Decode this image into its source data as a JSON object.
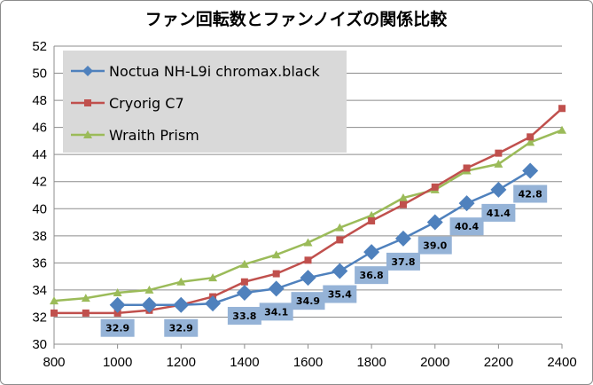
{
  "chart_data": {
    "type": "line",
    "title": "ファン回転数とファンノイズの関係比較",
    "xlabel": "",
    "ylabel": "",
    "xlim": [
      800,
      2400
    ],
    "ylim": [
      30,
      52
    ],
    "xticks": [
      800,
      1000,
      1200,
      1400,
      1600,
      1800,
      2000,
      2200,
      2400
    ],
    "yticks": [
      30,
      32,
      34,
      36,
      38,
      40,
      42,
      44,
      46,
      48,
      50,
      52
    ],
    "grid": "horizontal",
    "legend": "top-left",
    "series": [
      {
        "name": "Noctua NH-L9i chromax.black",
        "color": "#4f81bd",
        "marker": "diamond",
        "x": [
          1000,
          1100,
          1200,
          1300,
          1400,
          1500,
          1600,
          1700,
          1800,
          1900,
          2000,
          2100,
          2200,
          2300
        ],
        "y": [
          32.9,
          32.9,
          32.9,
          33.0,
          33.8,
          34.1,
          34.9,
          35.4,
          36.8,
          37.8,
          39.0,
          40.4,
          41.4,
          42.8
        ],
        "labels": [
          "32.9",
          "",
          "32.9",
          "",
          "33.8",
          "34.1",
          "34.9",
          "35.4",
          "36.8",
          "37.8",
          "39.0",
          "40.4",
          "41.4",
          "42.8"
        ]
      },
      {
        "name": "Cryorig C7",
        "color": "#c0504d",
        "marker": "square",
        "x": [
          800,
          900,
          1000,
          1100,
          1200,
          1300,
          1400,
          1500,
          1600,
          1700,
          1800,
          1900,
          2000,
          2100,
          2200,
          2300,
          2400
        ],
        "y": [
          32.3,
          32.3,
          32.3,
          32.5,
          32.9,
          33.5,
          34.6,
          35.2,
          36.2,
          37.7,
          39.1,
          40.3,
          41.6,
          43.0,
          44.1,
          45.3,
          47.4
        ]
      },
      {
        "name": "Wraith Prism",
        "color": "#9bbb59",
        "marker": "triangle",
        "x": [
          800,
          900,
          1000,
          1100,
          1200,
          1300,
          1400,
          1500,
          1600,
          1700,
          1800,
          1900,
          2000,
          2100,
          2200,
          2300,
          2400
        ],
        "y": [
          33.2,
          33.4,
          33.8,
          34.0,
          34.6,
          34.9,
          35.9,
          36.6,
          37.5,
          38.6,
          39.5,
          40.8,
          41.4,
          42.8,
          43.3,
          44.9,
          45.8
        ]
      }
    ]
  }
}
